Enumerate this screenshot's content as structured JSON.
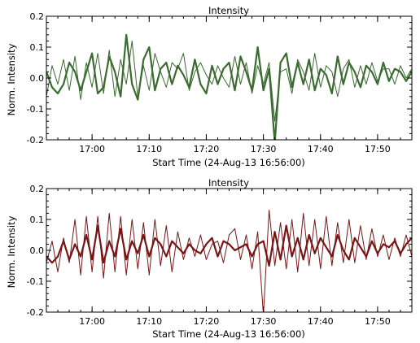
{
  "chart_data": [
    {
      "type": "line",
      "title": "Intensity",
      "xlabel": "Start Time (24-Aug-13 16:56:00)",
      "ylabel": "Norm. Intensity",
      "xlim_minutes": [
        -4,
        60
      ],
      "ylim": [
        -0.2,
        0.2
      ],
      "yticks": [
        -0.2,
        -0.1,
        0.0,
        0.1,
        0.2
      ],
      "ytick_labels": [
        "-0.2",
        "-0.1",
        "0.0",
        "0.1",
        "0.2"
      ],
      "xticks_minutes": [
        4,
        14,
        24,
        34,
        44,
        54
      ],
      "xtick_labels": [
        "17:00",
        "17:10",
        "17:20",
        "17:30",
        "17:40",
        "17:50"
      ],
      "grid": false,
      "color": "#3a6b2f",
      "series": [
        {
          "style": "thick",
          "x": [
            -4,
            -3,
            -2,
            -1,
            0,
            1,
            2,
            3,
            4,
            5,
            6,
            7,
            8,
            9,
            10,
            11,
            12,
            13,
            14,
            15,
            16,
            17,
            18,
            19,
            20,
            21,
            22,
            23,
            24,
            25,
            26,
            27,
            28,
            29,
            30,
            31,
            32,
            33,
            34,
            35,
            36,
            37,
            38,
            39,
            40,
            41,
            42,
            43,
            44,
            45,
            46,
            47,
            48,
            49,
            50,
            51,
            52,
            53,
            54,
            55,
            56,
            57,
            58,
            59,
            60
          ],
          "y": [
            0.02,
            -0.03,
            -0.05,
            -0.02,
            0.05,
            0.02,
            -0.04,
            0.02,
            0.08,
            -0.05,
            -0.03,
            0.07,
            0.02,
            -0.06,
            0.14,
            -0.02,
            -0.07,
            0.06,
            0.1,
            -0.04,
            0.03,
            0.05,
            -0.02,
            0.04,
            0.01,
            -0.03,
            0.06,
            -0.02,
            -0.05,
            0.04,
            -0.02,
            0.03,
            0.05,
            -0.04,
            0.07,
            0.02,
            -0.04,
            0.1,
            -0.04,
            0.03,
            -0.21,
            0.05,
            0.08,
            -0.03,
            0.05,
            -0.02,
            0.06,
            -0.04,
            0.03,
            0.01,
            -0.05,
            0.07,
            -0.02,
            0.05,
            0.02,
            -0.03,
            0.04,
            0.02,
            -0.02,
            0.05,
            -0.01,
            0.03,
            0.02,
            -0.01,
            0.02
          ]
        },
        {
          "style": "thin",
          "x": [
            -4,
            -3,
            -2,
            -1,
            0,
            1,
            2,
            3,
            4,
            5,
            6,
            7,
            8,
            9,
            10,
            11,
            12,
            13,
            14,
            15,
            16,
            17,
            18,
            19,
            20,
            21,
            22,
            23,
            24,
            25,
            26,
            27,
            28,
            29,
            30,
            31,
            32,
            33,
            34,
            35,
            36,
            37,
            38,
            39,
            40,
            41,
            42,
            43,
            44,
            45,
            46,
            47,
            48,
            49,
            50,
            51,
            52,
            53,
            54,
            55,
            56,
            57,
            58,
            59,
            60
          ],
          "y": [
            -0.06,
            0.04,
            -0.02,
            0.06,
            -0.04,
            0.07,
            -0.07,
            0.05,
            -0.03,
            0.08,
            -0.05,
            0.09,
            -0.06,
            0.06,
            -0.02,
            0.12,
            -0.06,
            0.04,
            -0.04,
            0.08,
            0.02,
            -0.03,
            0.05,
            0.03,
            0.08,
            -0.04,
            0.02,
            0.05,
            0.01,
            -0.02,
            0.04,
            0.0,
            -0.03,
            0.07,
            -0.02,
            0.05,
            -0.05,
            0.04,
            -0.02,
            0.05,
            -0.14,
            0.02,
            0.03,
            -0.05,
            0.06,
            0.02,
            -0.04,
            0.08,
            -0.03,
            0.04,
            0.02,
            -0.06,
            0.03,
            0.06,
            -0.03,
            0.04,
            -0.02,
            0.05,
            -0.01,
            0.03,
            0.03,
            -0.02,
            0.04,
            0.0,
            0.03
          ]
        }
      ]
    },
    {
      "type": "line",
      "title": "Intensity",
      "xlabel": "Start Time (24-Aug-13 16:56:00)",
      "ylabel": "Norm. Intensity",
      "xlim_minutes": [
        -4,
        60
      ],
      "ylim": [
        -0.2,
        0.2
      ],
      "yticks": [
        -0.2,
        -0.1,
        0.0,
        0.1,
        0.2
      ],
      "ytick_labels": [
        "-0.2",
        "-0.1",
        "0.0",
        "0.1",
        "0.2"
      ],
      "xticks_minutes": [
        4,
        14,
        24,
        34,
        44,
        54
      ],
      "xtick_labels": [
        "17:00",
        "17:10",
        "17:20",
        "17:30",
        "17:40",
        "17:50"
      ],
      "grid": false,
      "color": "#7a1515",
      "series": [
        {
          "style": "thick",
          "x": [
            -4,
            -3,
            -2,
            -1,
            0,
            1,
            2,
            3,
            4,
            5,
            6,
            7,
            8,
            9,
            10,
            11,
            12,
            13,
            14,
            15,
            16,
            17,
            18,
            19,
            20,
            21,
            22,
            23,
            24,
            25,
            26,
            27,
            28,
            29,
            30,
            31,
            32,
            33,
            34,
            35,
            36,
            37,
            38,
            39,
            40,
            41,
            42,
            43,
            44,
            45,
            46,
            47,
            48,
            49,
            50,
            51,
            52,
            53,
            54,
            55,
            56,
            57,
            58,
            59,
            60
          ],
          "y": [
            -0.02,
            -0.04,
            -0.02,
            0.03,
            -0.03,
            0.02,
            -0.02,
            0.05,
            -0.03,
            0.08,
            -0.04,
            0.03,
            -0.02,
            0.07,
            -0.03,
            0.03,
            -0.01,
            0.05,
            -0.02,
            0.04,
            0.02,
            -0.02,
            0.03,
            0.01,
            -0.01,
            0.02,
            0.0,
            -0.01,
            0.02,
            0.04,
            -0.02,
            0.03,
            0.02,
            0.0,
            0.01,
            0.02,
            -0.02,
            0.02,
            0.03,
            -0.05,
            0.06,
            -0.03,
            0.08,
            -0.02,
            0.04,
            -0.03,
            0.05,
            -0.01,
            0.04,
            0.01,
            -0.02,
            0.05,
            0.0,
            -0.03,
            0.04,
            0.01,
            -0.02,
            0.03,
            -0.01,
            0.02,
            0.01,
            0.03,
            -0.01,
            0.02,
            0.04
          ]
        },
        {
          "style": "thin",
          "x": [
            -4,
            -3,
            -2,
            -1,
            0,
            1,
            2,
            3,
            4,
            5,
            6,
            7,
            8,
            9,
            10,
            11,
            12,
            13,
            14,
            15,
            16,
            17,
            18,
            19,
            20,
            21,
            22,
            23,
            24,
            25,
            26,
            27,
            28,
            29,
            30,
            31,
            32,
            33,
            34,
            35,
            36,
            37,
            38,
            39,
            40,
            41,
            42,
            43,
            44,
            45,
            46,
            47,
            48,
            49,
            50,
            51,
            52,
            53,
            54,
            55,
            56,
            57,
            58,
            59,
            60
          ],
          "y": [
            -0.04,
            0.03,
            -0.07,
            0.04,
            -0.04,
            0.1,
            -0.08,
            0.11,
            -0.07,
            0.11,
            -0.09,
            0.12,
            -0.07,
            0.11,
            -0.08,
            0.1,
            -0.06,
            0.09,
            -0.08,
            0.1,
            -0.05,
            0.08,
            -0.07,
            0.06,
            -0.03,
            0.04,
            -0.02,
            0.05,
            -0.03,
            0.02,
            0.03,
            -0.04,
            0.05,
            0.07,
            -0.03,
            0.05,
            -0.06,
            0.06,
            -0.21,
            0.13,
            -0.05,
            0.09,
            -0.06,
            0.1,
            -0.07,
            0.12,
            -0.05,
            0.1,
            -0.06,
            0.11,
            -0.05,
            0.09,
            -0.04,
            0.1,
            -0.04,
            0.08,
            -0.03,
            0.07,
            -0.02,
            0.05,
            -0.03,
            0.04,
            -0.02,
            0.05,
            -0.02
          ]
        }
      ]
    }
  ]
}
